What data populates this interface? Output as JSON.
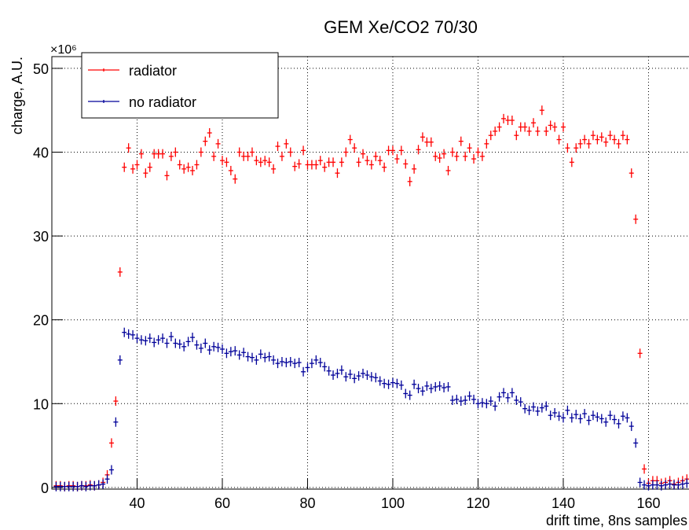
{
  "chart_data": {
    "type": "scatter",
    "title": "GEM Xe/CO2 70/30",
    "x_label": "drift time, 8ns samples",
    "y_label": "charge, A.U.",
    "y_multiplier": "×10⁶",
    "xlim": [
      20,
      169.5
    ],
    "ylim": [
      -0.2,
      51.4
    ],
    "xticks": [
      40,
      60,
      80,
      100,
      120,
      140,
      160
    ],
    "yticks": [
      0,
      10,
      20,
      30,
      40,
      50
    ],
    "grid": true,
    "legend": "upper left",
    "x": [
      21,
      22,
      23,
      24,
      25,
      26,
      27,
      28,
      29,
      30,
      31,
      32,
      33,
      34,
      35,
      36,
      37,
      38,
      39,
      40,
      41,
      42,
      43,
      44,
      45,
      46,
      47,
      48,
      49,
      50,
      51,
      52,
      53,
      54,
      55,
      56,
      57,
      58,
      59,
      60,
      61,
      62,
      63,
      64,
      65,
      66,
      67,
      68,
      69,
      70,
      71,
      72,
      73,
      74,
      75,
      76,
      77,
      78,
      79,
      80,
      81,
      82,
      83,
      84,
      85,
      86,
      87,
      88,
      89,
      90,
      91,
      92,
      93,
      94,
      95,
      96,
      97,
      98,
      99,
      100,
      101,
      102,
      103,
      104,
      105,
      106,
      107,
      108,
      109,
      110,
      111,
      112,
      113,
      114,
      115,
      116,
      117,
      118,
      119,
      120,
      121,
      122,
      123,
      124,
      125,
      126,
      127,
      128,
      129,
      130,
      131,
      132,
      133,
      134,
      135,
      136,
      137,
      138,
      139,
      140,
      141,
      142,
      143,
      144,
      145,
      146,
      147,
      148,
      149,
      150,
      151,
      152,
      153,
      154,
      155,
      156,
      157,
      158,
      159,
      160,
      161,
      162,
      163,
      164,
      165,
      166,
      167,
      168,
      169
    ],
    "series": [
      {
        "name": "radiator",
        "color": "#ff0000",
        "values": [
          0.2,
          0.2,
          0.1,
          0.2,
          0.2,
          0.1,
          0.2,
          0.2,
          0.3,
          0.2,
          0.3,
          0.6,
          1.5,
          5.3,
          10.3,
          25.7,
          38.2,
          40.5,
          38.0,
          38.5,
          39.8,
          37.5,
          38.2,
          39.8,
          39.8,
          39.8,
          37.2,
          39.5,
          40.0,
          38.5,
          38.0,
          38.2,
          37.8,
          38.5,
          40.0,
          41.3,
          42.3,
          39.5,
          41.0,
          39.0,
          38.8,
          37.8,
          36.8,
          40.0,
          39.5,
          39.5,
          40.0,
          39.0,
          38.8,
          39.0,
          38.8,
          38.0,
          40.7,
          39.5,
          41.0,
          40.0,
          38.3,
          38.6,
          40.2,
          38.5,
          38.5,
          38.5,
          39.0,
          38.2,
          38.8,
          38.8,
          37.5,
          38.8,
          40.0,
          41.5,
          40.5,
          38.8,
          39.8,
          39.0,
          38.5,
          39.5,
          39.0,
          38.2,
          40.2,
          40.2,
          39.2,
          40.2,
          38.6,
          36.5,
          38.0,
          40.3,
          41.8,
          41.2,
          41.2,
          39.5,
          39.3,
          39.8,
          37.8,
          40.0,
          39.5,
          41.3,
          39.5,
          40.5,
          39.2,
          40.0,
          39.5,
          41.0,
          42.0,
          42.5,
          43.0,
          44.0,
          43.8,
          43.8,
          42.0,
          43.0,
          43.0,
          42.5,
          43.5,
          42.5,
          45.0,
          42.5,
          43.2,
          43.0,
          41.5,
          43.0,
          40.5,
          38.8,
          40.5,
          41.0,
          41.5,
          41.0,
          42.0,
          41.5,
          41.8,
          41.2,
          42.0,
          41.5,
          41.0,
          42.0,
          41.5,
          37.5,
          32.0,
          16.0,
          2.2,
          0.5,
          0.8,
          0.8,
          0.5,
          0.6,
          0.8,
          0.4,
          0.6,
          0.8,
          1.0
        ]
      },
      {
        "name": "no radiator",
        "color": "#000099",
        "values": [
          0.1,
          0.1,
          0.1,
          0.1,
          0.1,
          0.1,
          0.2,
          0.1,
          0.2,
          0.2,
          0.3,
          0.4,
          1.0,
          2.1,
          7.8,
          15.2,
          18.5,
          18.3,
          18.2,
          17.8,
          17.6,
          17.5,
          17.8,
          17.3,
          17.6,
          17.8,
          17.2,
          18.0,
          17.2,
          17.1,
          16.8,
          17.4,
          17.9,
          17.0,
          16.6,
          17.2,
          16.4,
          16.8,
          16.7,
          16.5,
          16.0,
          16.2,
          16.3,
          15.8,
          16.1,
          15.6,
          15.5,
          15.2,
          15.9,
          15.5,
          15.6,
          15.2,
          14.8,
          15.0,
          14.9,
          15.0,
          14.8,
          14.9,
          13.8,
          14.3,
          14.8,
          15.2,
          14.9,
          14.4,
          13.9,
          13.4,
          13.6,
          14.0,
          13.2,
          13.5,
          13.0,
          13.3,
          13.6,
          13.4,
          13.2,
          13.1,
          12.7,
          12.4,
          12.3,
          12.5,
          12.4,
          12.2,
          11.2,
          11.0,
          12.3,
          11.8,
          11.5,
          12.1,
          11.8,
          12.0,
          12.1,
          11.9,
          12.0,
          10.4,
          10.5,
          10.3,
          10.4,
          10.9,
          10.5,
          10.0,
          10.1,
          10.0,
          10.3,
          9.7,
          10.8,
          11.3,
          10.7,
          11.3,
          10.4,
          10.2,
          9.4,
          9.2,
          9.6,
          9.1,
          9.5,
          9.7,
          8.6,
          8.9,
          8.5,
          8.3,
          9.2,
          8.3,
          8.7,
          8.2,
          8.8,
          8.0,
          8.6,
          8.4,
          8.2,
          7.8,
          8.6,
          8.1,
          7.6,
          8.5,
          8.3,
          7.3,
          5.3,
          0.6,
          0.3,
          0.2,
          0.3,
          0.3,
          0.2,
          0.3,
          0.4,
          0.3,
          0.3,
          0.4,
          0.5
        ]
      }
    ]
  }
}
